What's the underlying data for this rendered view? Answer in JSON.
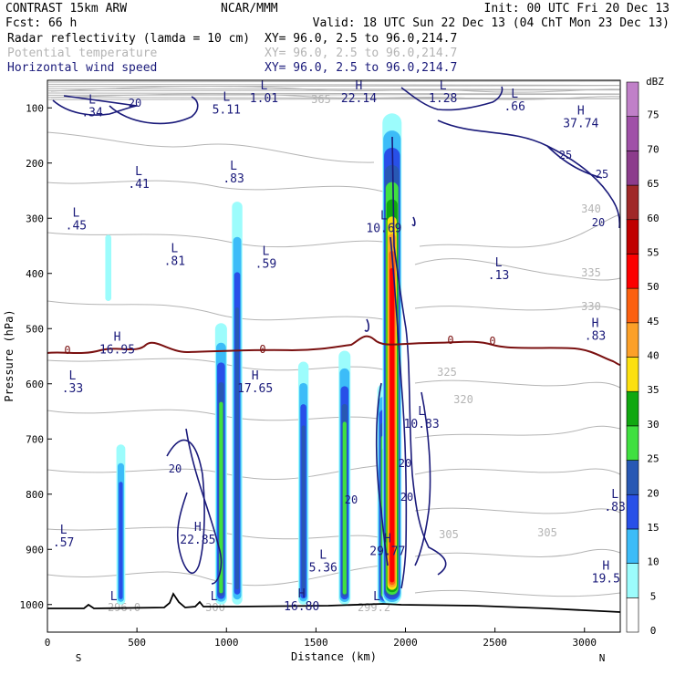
{
  "header": {
    "line1_left": "CONTRAST 15km ARW",
    "line1_center": "NCAR/MMM",
    "line1_right": "Init: 00 UTC Fri 20 Dec 13",
    "line2_left": "Fcst:   66 h",
    "line2_right": "Valid: 18 UTC Sun 22 Dec 13 (04 ChT Mon 23 Dec 13)",
    "field1_name": "Radar reflectivity (lamda = 10 cm)",
    "field1_xy": "XY=  96.0,  2.5 to  96.0,214.7",
    "field2_name": "Potential temperature",
    "field2_xy": "XY=  96.0,  2.5 to  96.0,214.7",
    "field3_name": "Horizontal wind speed",
    "field3_xy": "XY=  96.0,  2.5 to  96.0,214.7"
  },
  "colors": {
    "wind": "#1a1a7a",
    "theta": "#b4b4b4",
    "freezing": "#7a1010",
    "terrain": "#000000"
  },
  "chart_data": {
    "type": "heatmap",
    "title": "Radar reflectivity (lamda = 10 cm)",
    "xlabel": "Distance (km)",
    "ylabel": "Pressure (hPa)",
    "xlim": [
      0,
      3200
    ],
    "ylim": [
      1050,
      50
    ],
    "x_ticks": [
      "0",
      "500",
      "1000",
      "1500",
      "2000",
      "2500",
      "3000"
    ],
    "x_tick_values": [
      0,
      500,
      1000,
      1500,
      2000,
      2500,
      3000
    ],
    "y_ticks": [
      "100",
      "200",
      "300",
      "400",
      "500",
      "600",
      "700",
      "800",
      "900",
      "1000"
    ],
    "y_tick_values": [
      100,
      200,
      300,
      400,
      500,
      600,
      700,
      800,
      900,
      1000
    ],
    "x_end_labels": [
      "S",
      "N"
    ],
    "colorbar": {
      "unit": "dBZ",
      "levels": [
        "0",
        "5",
        "10",
        "15",
        "20",
        "25",
        "30",
        "35",
        "40",
        "45",
        "50",
        "55",
        "60",
        "65",
        "70",
        "75"
      ],
      "colors": [
        "#ffffff",
        "#9cfcfc",
        "#3cbcf8",
        "#2850e8",
        "#2858b4",
        "#40e040",
        "#10a810",
        "#fce010",
        "#fca028",
        "#fc6010",
        "#fc0000",
        "#c00000",
        "#a02828",
        "#8c3c8c",
        "#a050a8",
        "#c080c8"
      ]
    },
    "echoes": [
      {
        "x": 340,
        "p_top": 330,
        "p_bot": 450,
        "dbz": 5
      },
      {
        "x": 410,
        "p_top": 710,
        "p_bot": 1000,
        "dbz": 15
      },
      {
        "x": 970,
        "p_top": 490,
        "p_bot": 1000,
        "dbz": 25
      },
      {
        "x": 1060,
        "p_top": 270,
        "p_bot": 1000,
        "dbz": 20
      },
      {
        "x": 1430,
        "p_top": 560,
        "p_bot": 1000,
        "dbz": 20
      },
      {
        "x": 1660,
        "p_top": 540,
        "p_bot": 1000,
        "dbz": 25
      },
      {
        "x": 1880,
        "p_top": 600,
        "p_bot": 1000,
        "dbz": 30
      },
      {
        "x": 1925,
        "p_top": 110,
        "p_bot": 1000,
        "dbz": 50
      }
    ],
    "series": [
      {
        "name": "Horizontal wind speed",
        "contour_labels": [
          "20",
          "20",
          "20",
          "20",
          "20",
          "25",
          "25",
          "20"
        ]
      },
      {
        "name": "Potential temperature",
        "contour_labels": [
          "365",
          "305",
          "340",
          "335",
          "330",
          "325",
          "320",
          "305",
          "296.0",
          "300",
          "299.2"
        ]
      }
    ],
    "freezing_level_label": "0",
    "extrema": [
      {
        "kind": "L",
        "x": 250,
        "p": 105,
        "value": ".34"
      },
      {
        "kind": "L",
        "x": 1000,
        "p": 100,
        "value": "5.11"
      },
      {
        "kind": "L",
        "x": 1210,
        "p": 80,
        "value": "1.01"
      },
      {
        "kind": "H",
        "x": 1740,
        "p": 80,
        "value": "22.14"
      },
      {
        "kind": "L",
        "x": 2210,
        "p": 80,
        "value": "1.28"
      },
      {
        "kind": "L",
        "x": 2610,
        "p": 95,
        "value": ".66"
      },
      {
        "kind": "H",
        "x": 2980,
        "p": 125,
        "value": "37.74"
      },
      {
        "kind": "L",
        "x": 510,
        "p": 235,
        "value": ".41"
      },
      {
        "kind": "L",
        "x": 1040,
        "p": 225,
        "value": ".83"
      },
      {
        "kind": "L",
        "x": 160,
        "p": 310,
        "value": ".45"
      },
      {
        "kind": "L",
        "x": 1880,
        "p": 315,
        "value": "10.69"
      },
      {
        "kind": "L",
        "x": 1220,
        "p": 380,
        "value": ".59"
      },
      {
        "kind": "L",
        "x": 710,
        "p": 375,
        "value": ".81"
      },
      {
        "kind": "L",
        "x": 2520,
        "p": 400,
        "value": ".13"
      },
      {
        "kind": "H",
        "x": 3060,
        "p": 510,
        "value": ".83"
      },
      {
        "kind": "H",
        "x": 390,
        "p": 535,
        "value": "16.95"
      },
      {
        "kind": "L",
        "x": 140,
        "p": 605,
        "value": ".33"
      },
      {
        "kind": "H",
        "x": 1160,
        "p": 605,
        "value": "17.65"
      },
      {
        "kind": "L",
        "x": 2090,
        "p": 670,
        "value": "10.83"
      },
      {
        "kind": "L",
        "x": 3170,
        "p": 820,
        "value": ".83"
      },
      {
        "kind": "H",
        "x": 840,
        "p": 880,
        "value": "22.85"
      },
      {
        "kind": "L",
        "x": 1540,
        "p": 930,
        "value": "5.36"
      },
      {
        "kind": "H",
        "x": 1900,
        "p": 900,
        "value": "29.77"
      },
      {
        "kind": "L",
        "x": 90,
        "p": 885,
        "value": ".57"
      },
      {
        "kind": "H",
        "x": 3120,
        "p": 950,
        "value": "19.5"
      },
      {
        "kind": "H",
        "x": 1420,
        "p": 1000,
        "value": "16.80"
      },
      {
        "kind": "L",
        "x": 370,
        "p": 1005,
        "value": ""
      },
      {
        "kind": "L",
        "x": 930,
        "p": 1005,
        "value": ""
      },
      {
        "kind": "L",
        "x": 1840,
        "p": 1005,
        "value": ""
      }
    ]
  }
}
